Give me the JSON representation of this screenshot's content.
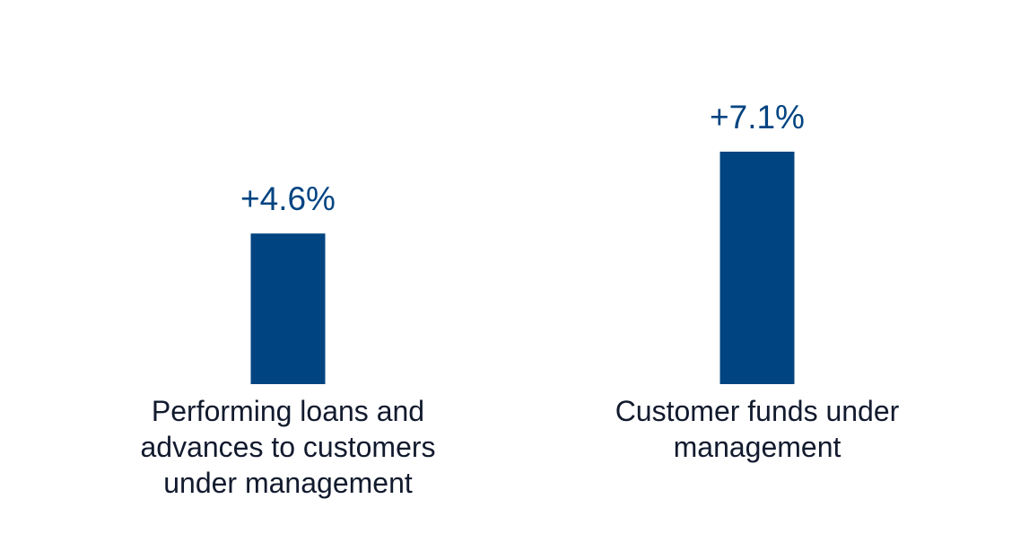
{
  "chart_data": {
    "type": "bar",
    "categories": [
      "Performing loans and advances to customers under management",
      "Customer funds under management"
    ],
    "values": [
      4.6,
      7.1
    ],
    "value_labels": [
      "+4.6%",
      "+7.1%"
    ],
    "color": "#004481"
  }
}
